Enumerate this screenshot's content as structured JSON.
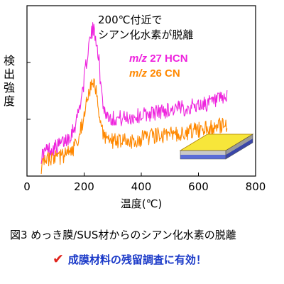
{
  "chart_data": {
    "type": "line",
    "xlabel": "温度(℃)",
    "ylabel": [
      "検",
      "出",
      "強",
      "度"
    ],
    "xlim": [
      0,
      800
    ],
    "xticks": [
      0,
      200,
      400,
      600,
      800
    ],
    "y_tick_count": 2,
    "grid": false,
    "annotation": [
      "200℃付近で",
      "シアン化水素が脱離"
    ],
    "series": [
      {
        "name": "m/z 27 HCN",
        "color": "#ee22dd",
        "x": [
          50,
          70,
          90,
          110,
          130,
          150,
          170,
          190,
          200,
          210,
          220,
          230,
          240,
          250,
          260,
          270,
          280,
          300,
          350,
          400,
          450,
          500,
          550,
          600,
          650,
          700
        ],
        "y": [
          0.1,
          0.14,
          0.15,
          0.17,
          0.2,
          0.24,
          0.32,
          0.5,
          0.62,
          0.78,
          0.9,
          0.97,
          0.94,
          0.8,
          0.55,
          0.42,
          0.38,
          0.36,
          0.36,
          0.38,
          0.4,
          0.42,
          0.43,
          0.45,
          0.47,
          0.5
        ]
      },
      {
        "name": "m/z 26 CN",
        "color": "#ff8800",
        "x": [
          50,
          70,
          90,
          110,
          130,
          150,
          170,
          190,
          200,
          210,
          220,
          230,
          240,
          250,
          260,
          270,
          280,
          300,
          350,
          400,
          450,
          500,
          550,
          600,
          650,
          700
        ],
        "y": [
          0.03,
          0.07,
          0.08,
          0.09,
          0.1,
          0.13,
          0.17,
          0.3,
          0.38,
          0.47,
          0.55,
          0.6,
          0.56,
          0.42,
          0.29,
          0.24,
          0.22,
          0.2,
          0.2,
          0.22,
          0.24,
          0.25,
          0.26,
          0.28,
          0.3,
          0.32
        ]
      }
    ]
  },
  "legend": {
    "mz": "m/z",
    "hcn": "27 HCN",
    "cn": "26 CN"
  },
  "caption": "図3  めっき膜/SUS材からのシアン化水素の脱離",
  "note": {
    "check": "✔",
    "text": "成膜材料の残留調査に有効！"
  }
}
